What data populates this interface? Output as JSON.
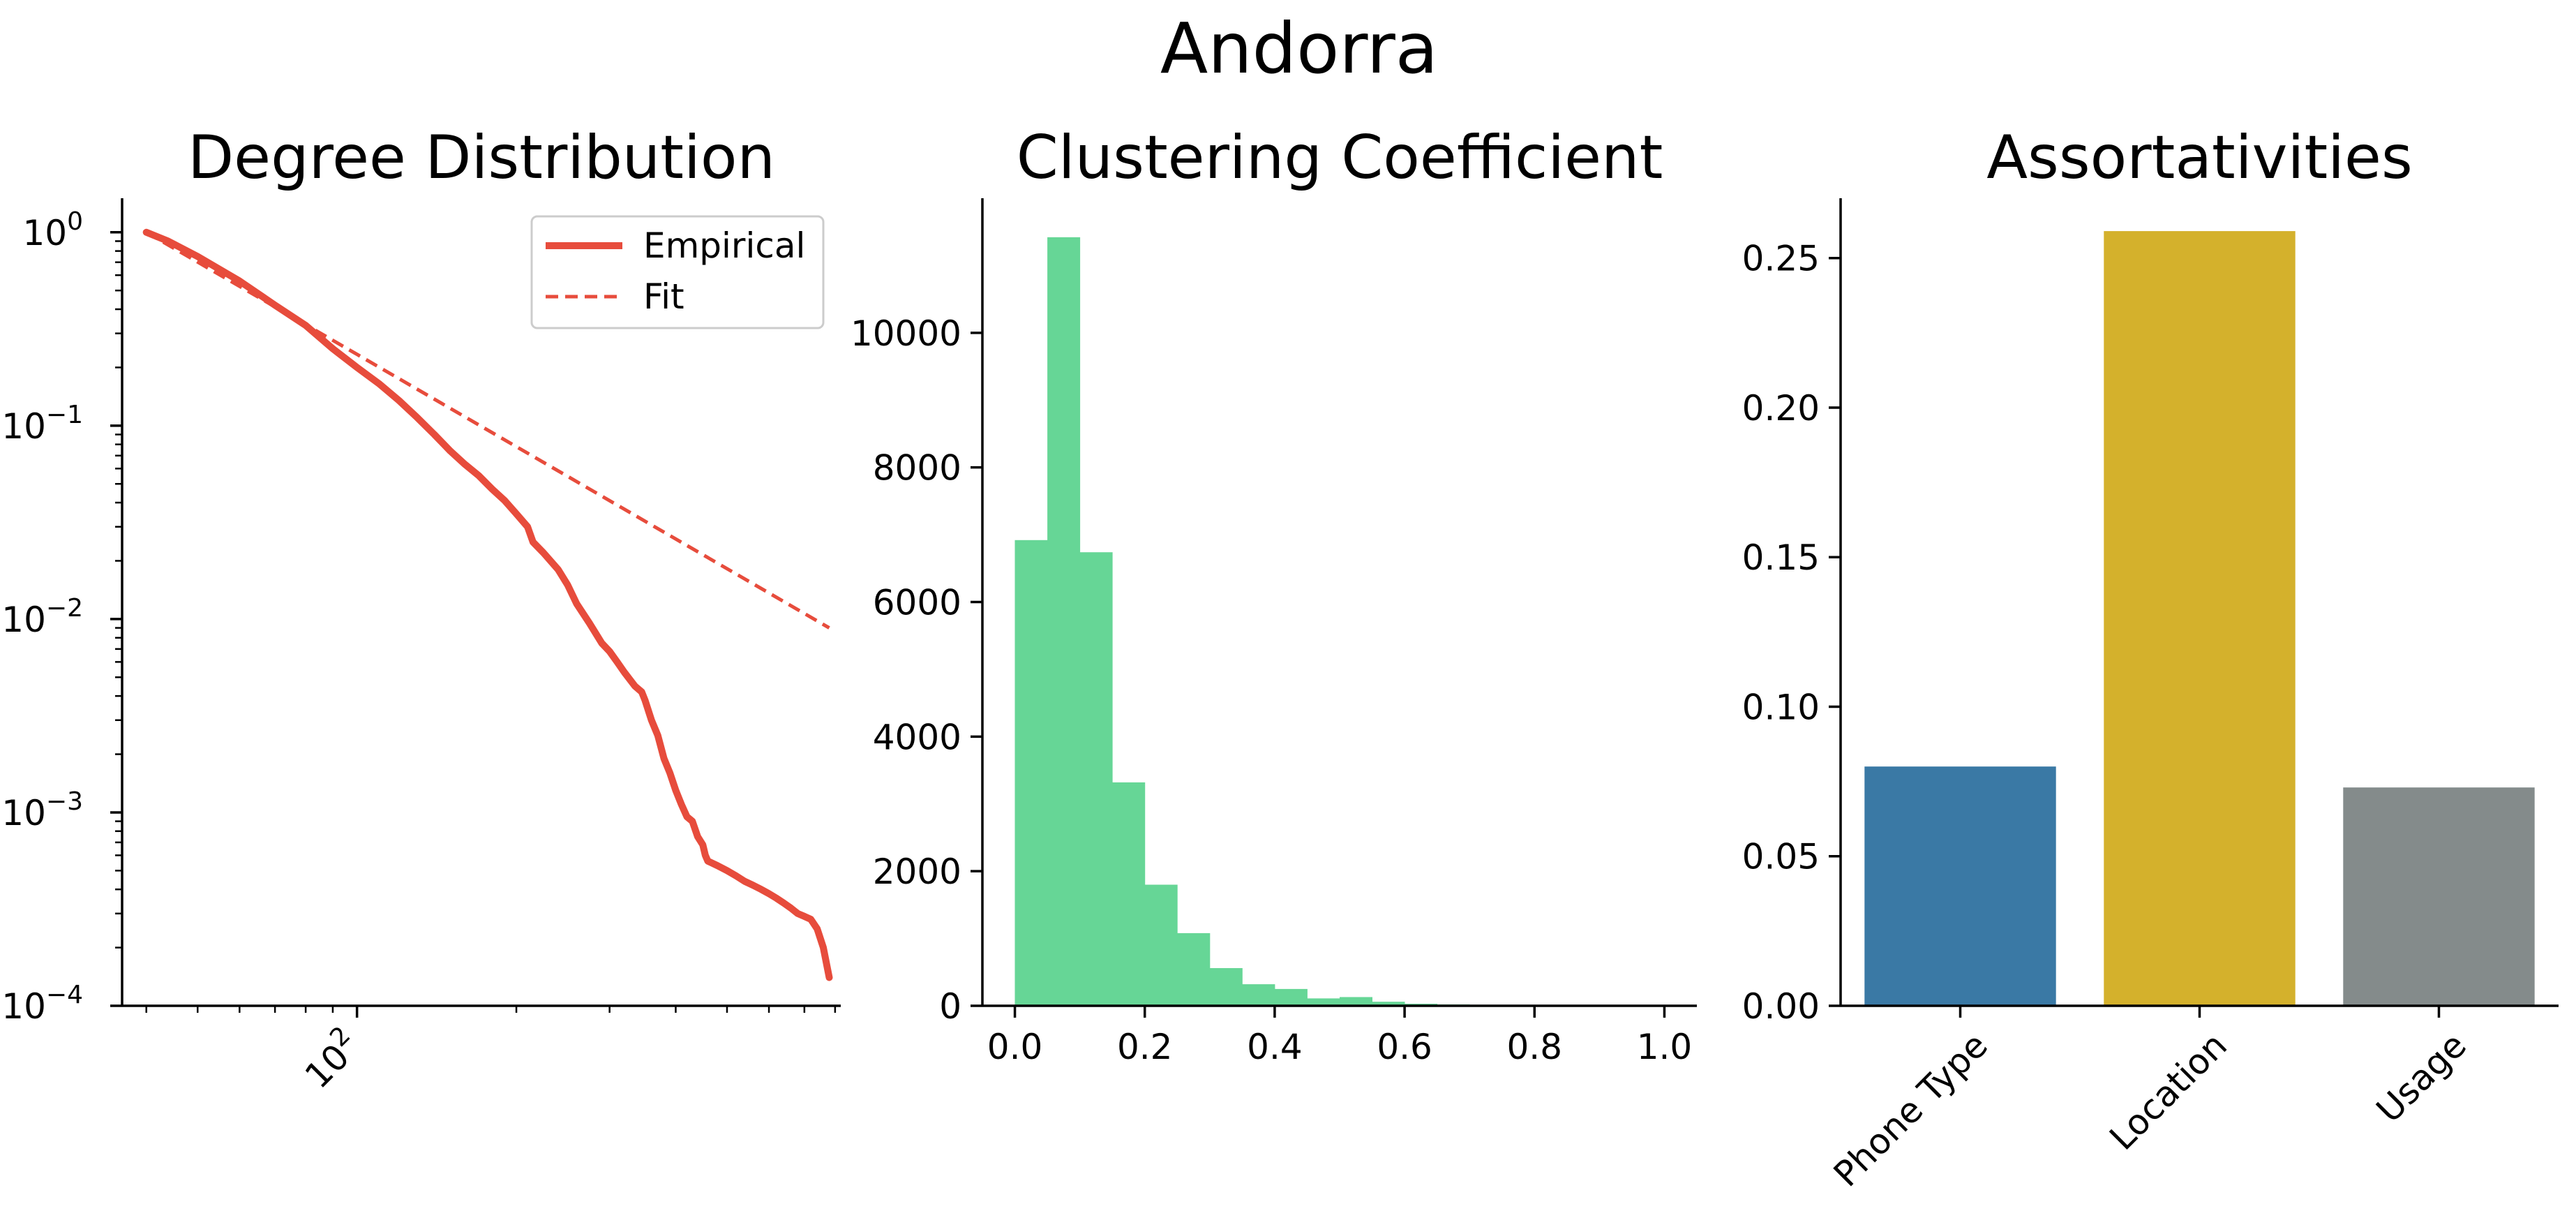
{
  "figure_title": "Andorra",
  "colors": {
    "empirical": "#e74c3c",
    "fit": "#e74c3c",
    "histogram": "#66d696",
    "bar_phone_type": "#3a79a5",
    "bar_location": "#d4b12c",
    "bar_usage": "#848b8b"
  },
  "chart_data": [
    {
      "type": "line",
      "title": "Degree Distribution",
      "xscale": "log",
      "yscale": "log",
      "xlim": [
        36,
        820
      ],
      "ylim": [
        0.0001,
        1.5
      ],
      "x_ticks": [
        {
          "value": 100,
          "label": "10",
          "exponent": "2"
        }
      ],
      "y_ticks": [
        {
          "value": 1,
          "label": "10",
          "exponent": "0"
        },
        {
          "value": 0.1,
          "label": "10",
          "exponent": "−1"
        },
        {
          "value": 0.01,
          "label": "10",
          "exponent": "−2"
        },
        {
          "value": 0.001,
          "label": "10",
          "exponent": "−3"
        },
        {
          "value": 0.0001,
          "label": "10",
          "exponent": "−4"
        }
      ],
      "legend": {
        "location": "top-right",
        "entries": [
          "Empirical",
          "Fit"
        ]
      },
      "series": [
        {
          "name": "Empirical",
          "style": "solid",
          "x": [
            40,
            44,
            50,
            60,
            70,
            80,
            90,
            100,
            110,
            120,
            130,
            140,
            150,
            160,
            170,
            180,
            190,
            200,
            210,
            215,
            225,
            240,
            250,
            260,
            275,
            290,
            300,
            310,
            320,
            335,
            345,
            350,
            360,
            370,
            380,
            390,
            400,
            410,
            420,
            430,
            440,
            450,
            455,
            460,
            480,
            500,
            520,
            540,
            560,
            580,
            600,
            620,
            640,
            660,
            680,
            700,
            720,
            740,
            760,
            780
          ],
          "y": [
            1.0,
            0.9,
            0.75,
            0.56,
            0.42,
            0.33,
            0.25,
            0.2,
            0.165,
            0.135,
            0.11,
            0.09,
            0.074,
            0.063,
            0.055,
            0.047,
            0.041,
            0.035,
            0.03,
            0.025,
            0.022,
            0.018,
            0.015,
            0.012,
            0.0095,
            0.0075,
            0.0068,
            0.006,
            0.0053,
            0.0045,
            0.0042,
            0.0038,
            0.003,
            0.0025,
            0.0019,
            0.0016,
            0.0013,
            0.0011,
            0.00095,
            0.0009,
            0.00075,
            0.00068,
            0.0006,
            0.00056,
            0.00053,
            0.0005,
            0.00047,
            0.00044,
            0.00042,
            0.0004,
            0.00038,
            0.00036,
            0.00034,
            0.00032,
            0.0003,
            0.00029,
            0.00028,
            0.00025,
            0.0002,
            0.00014
          ]
        },
        {
          "name": "Fit",
          "style": "dashed",
          "x": [
            40,
            780
          ],
          "y": [
            1.0,
            0.009
          ]
        }
      ]
    },
    {
      "type": "bar",
      "subtype": "histogram",
      "title": "Clustering Coefficient",
      "xlim": [
        -0.05,
        1.05
      ],
      "ylim": [
        0,
        12000
      ],
      "x_ticks": [
        0.0,
        0.2,
        0.4,
        0.6,
        0.8,
        1.0
      ],
      "x_tick_labels": [
        "0.0",
        "0.2",
        "0.4",
        "0.6",
        "0.8",
        "1.0"
      ],
      "y_ticks": [
        0,
        2000,
        4000,
        6000,
        8000,
        10000
      ],
      "y_tick_labels": [
        "0",
        "2000",
        "4000",
        "6000",
        "8000",
        "10000"
      ],
      "bin_edges": [
        0.0,
        0.05,
        0.1,
        0.15,
        0.2,
        0.25,
        0.3,
        0.35,
        0.4,
        0.45,
        0.5,
        0.55,
        0.6,
        0.65,
        0.7,
        0.75,
        0.8,
        0.85,
        0.9,
        0.95,
        1.0
      ],
      "counts": [
        6920,
        11420,
        6740,
        3320,
        1800,
        1080,
        560,
        320,
        250,
        110,
        130,
        60,
        30,
        20,
        10,
        5,
        5,
        0,
        0,
        15
      ]
    },
    {
      "type": "bar",
      "title": "Assortativities",
      "categories": [
        "Phone Type",
        "Location",
        "Usage"
      ],
      "values": [
        0.08,
        0.259,
        0.073
      ],
      "ylim": [
        0,
        0.27
      ],
      "y_ticks": [
        0.0,
        0.05,
        0.1,
        0.15,
        0.2,
        0.25
      ],
      "y_tick_labels": [
        "0.00",
        "0.05",
        "0.10",
        "0.15",
        "0.20",
        "0.25"
      ]
    }
  ]
}
